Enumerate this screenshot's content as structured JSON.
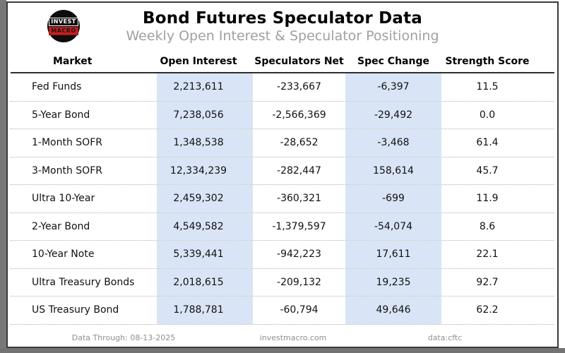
{
  "header": {
    "logo_line1": "INVEST",
    "logo_line2": "MACRO",
    "title": "Bond Futures Speculator Data",
    "subtitle": "Weekly Open Interest & Speculator Positioning"
  },
  "table": {
    "columns": [
      "Market",
      "Open Interest",
      "Speculators Net",
      "Spec Change",
      "Strength Score"
    ],
    "rows": [
      {
        "market": "Fed Funds",
        "open_interest": "2,213,611",
        "speculators_net": "-233,667",
        "spec_change": "-6,397",
        "strength_score": "11.5"
      },
      {
        "market": "5-Year Bond",
        "open_interest": "7,238,056",
        "speculators_net": "-2,566,369",
        "spec_change": "-29,492",
        "strength_score": "0.0"
      },
      {
        "market": "1-Month SOFR",
        "open_interest": "1,348,538",
        "speculators_net": "-28,652",
        "spec_change": "-3,468",
        "strength_score": "61.4"
      },
      {
        "market": "3-Month SOFR",
        "open_interest": "12,334,239",
        "speculators_net": "-282,447",
        "spec_change": "158,614",
        "strength_score": "45.7"
      },
      {
        "market": "Ultra 10-Year",
        "open_interest": "2,459,302",
        "speculators_net": "-360,321",
        "spec_change": "-699",
        "strength_score": "11.9"
      },
      {
        "market": "2-Year Bond",
        "open_interest": "4,549,582",
        "speculators_net": "-1,379,597",
        "spec_change": "-54,074",
        "strength_score": "8.6"
      },
      {
        "market": "10-Year Note",
        "open_interest": "5,339,441",
        "speculators_net": "-942,223",
        "spec_change": "17,611",
        "strength_score": "22.1"
      },
      {
        "market": "Ultra Treasury Bonds",
        "open_interest": "2,018,615",
        "speculators_net": "-209,132",
        "spec_change": "19,235",
        "strength_score": "92.7"
      },
      {
        "market": "US Treasury Bond",
        "open_interest": "1,788,781",
        "speculators_net": "-60,794",
        "spec_change": "49,646",
        "strength_score": "62.2"
      }
    ]
  },
  "footer": {
    "data_through": "Data Through: 08-13-2025",
    "site": "investmacro.com",
    "source": "data:cftc"
  },
  "colors": {
    "highlight_band": "#d9e4f6",
    "logo_red": "#c81f1f",
    "subtitle_gray": "#a0a0a0",
    "footer_gray": "#8f8f8f"
  }
}
